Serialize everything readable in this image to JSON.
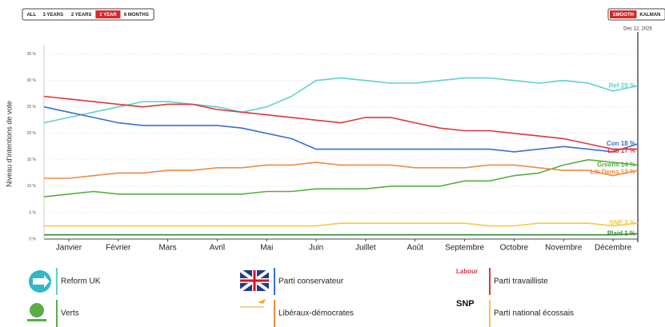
{
  "toolbar": {
    "ranges": [
      "ALL",
      "3 YEARS",
      "2 YEARS",
      "1 YEAR",
      "6 MONTHS"
    ],
    "active_range": 3,
    "modes": [
      "SMOOTH",
      "KALMAN"
    ],
    "active_mode": 0
  },
  "chart_data": {
    "type": "line",
    "y_label": "Niveau d'intentions de vote",
    "end_date": "Dec 12, 2025",
    "categories": [
      null,
      "Janvier",
      null,
      "Février",
      null,
      "Mars",
      null,
      "Avril",
      null,
      "Mai",
      null,
      "Juin",
      null,
      "Juillet",
      null,
      "Août",
      null,
      "Septembre",
      null,
      "Octobre",
      null,
      "Novembre",
      null,
      "Décembre",
      null
    ],
    "ylim": [
      0,
      36
    ],
    "yticks": [
      {
        "value": 0,
        "label": "0 %"
      },
      {
        "value": 5,
        "label": "5 %"
      },
      {
        "value": 10,
        "label": "10 %"
      },
      {
        "value": 15,
        "label": "15 %"
      },
      {
        "value": 20,
        "label": "20 %"
      },
      {
        "value": 25,
        "label": "25 %"
      },
      {
        "value": 30,
        "label": "30 %"
      },
      {
        "value": 35,
        "label": "35 %"
      }
    ],
    "grid": true,
    "series": [
      {
        "name": "Reform UK",
        "short_name": "Ref",
        "end_label": "29 %",
        "color": "#5fd3c9",
        "values": [
          22,
          23,
          24,
          25,
          26,
          26,
          25.5,
          25,
          24,
          25,
          27,
          30,
          30.5,
          30,
          29.5,
          29.5,
          30,
          30.5,
          30.5,
          30,
          29.5,
          30,
          29.5,
          28,
          29
        ]
      },
      {
        "name": "Parti conservateur",
        "short_name": "Con",
        "end_label": "18 %",
        "color": "#3b6fd4",
        "values": [
          25,
          24,
          23,
          22,
          21.5,
          21.5,
          21.5,
          21.5,
          21,
          20,
          19,
          17,
          17,
          17,
          17,
          17,
          17,
          17,
          17,
          16.5,
          17,
          17.5,
          17,
          16.5,
          18
        ]
      },
      {
        "name": "Parti travailliste",
        "short_name": "Lab",
        "end_label": "17 %",
        "color": "#e0363c",
        "values": [
          27,
          26.5,
          26,
          25.5,
          25,
          25.5,
          25.5,
          24.5,
          24,
          23.5,
          23,
          22.5,
          22,
          23,
          23,
          22,
          21,
          20.5,
          20.5,
          20,
          19.5,
          19,
          18,
          17,
          17
        ]
      },
      {
        "name": "Verts",
        "short_name": "Greens",
        "end_label": "14 %",
        "color": "#5aad45",
        "values": [
          8,
          8.5,
          9,
          8.5,
          8.5,
          8.5,
          8.5,
          8.5,
          8.5,
          9,
          9,
          9.5,
          9.5,
          9.5,
          10,
          10,
          10,
          11,
          11,
          12,
          12.5,
          14,
          15,
          14.5,
          14
        ]
      },
      {
        "name": "Libéraux-démocrates",
        "short_name": "Lib Dems",
        "end_label": "13 %",
        "color": "#f08a40",
        "values": [
          11.5,
          11.5,
          12,
          12.5,
          12.5,
          13,
          13,
          13.5,
          13.5,
          14,
          14,
          14.5,
          14,
          14,
          14,
          13.5,
          13.5,
          13.5,
          14,
          14,
          13.5,
          13,
          13,
          12,
          13
        ]
      },
      {
        "name": "Parti national écossais",
        "short_name": "SNP",
        "end_label": "3 %",
        "color": "#f5c842",
        "values": [
          2.5,
          2.5,
          2.5,
          2.5,
          2.5,
          2.5,
          2.5,
          2.5,
          2.5,
          2.5,
          2.5,
          2.5,
          3,
          3,
          3,
          3,
          3,
          3,
          2.5,
          2.5,
          3,
          3,
          3,
          2.5,
          3
        ]
      },
      {
        "short_name": "Plaid",
        "end_label": "1 %",
        "color": "#2f8a3a",
        "values": [
          0.8,
          0.8,
          0.8,
          0.8,
          0.8,
          0.8,
          0.8,
          0.8,
          0.8,
          0.8,
          0.8,
          0.8,
          0.8,
          0.8,
          0.8,
          0.8,
          0.8,
          0.8,
          0.8,
          0.8,
          0.8,
          0.8,
          0.8,
          0.8,
          1
        ]
      }
    ]
  },
  "logos": {
    "labour": "Labour",
    "snp": "SNP"
  }
}
